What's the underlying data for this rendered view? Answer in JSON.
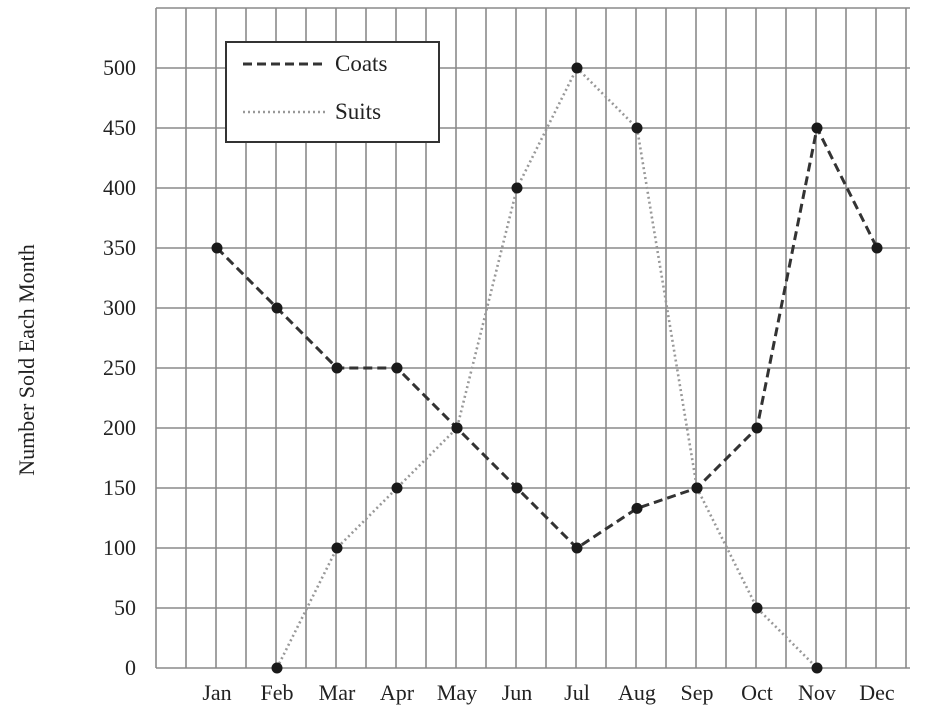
{
  "chart_data": {
    "type": "line",
    "title": "",
    "xlabel": "",
    "ylabel": "Number Sold Each Month",
    "categories": [
      "Jan",
      "Feb",
      "Mar",
      "Apr",
      "May",
      "Jun",
      "Jul",
      "Aug",
      "Sep",
      "Oct",
      "Nov",
      "Dec"
    ],
    "ylim": [
      0,
      550
    ],
    "yticks": [
      0,
      50,
      100,
      150,
      200,
      250,
      300,
      350,
      400,
      450,
      500
    ],
    "grid": true,
    "legend_position": "top-left",
    "series": [
      {
        "name": "Coats",
        "style": "dashed",
        "color": "#333333",
        "values": [
          350,
          300,
          250,
          250,
          200,
          150,
          100,
          133,
          150,
          200,
          450,
          350
        ]
      },
      {
        "name": "Suits",
        "style": "dotted",
        "color": "#999999",
        "values": [
          null,
          0,
          100,
          150,
          200,
          400,
          500,
          450,
          150,
          50,
          0,
          null
        ]
      }
    ],
    "colors": {
      "grid": "#8a8a8a",
      "marker": "#1a1a1a",
      "text": "#222222"
    }
  }
}
